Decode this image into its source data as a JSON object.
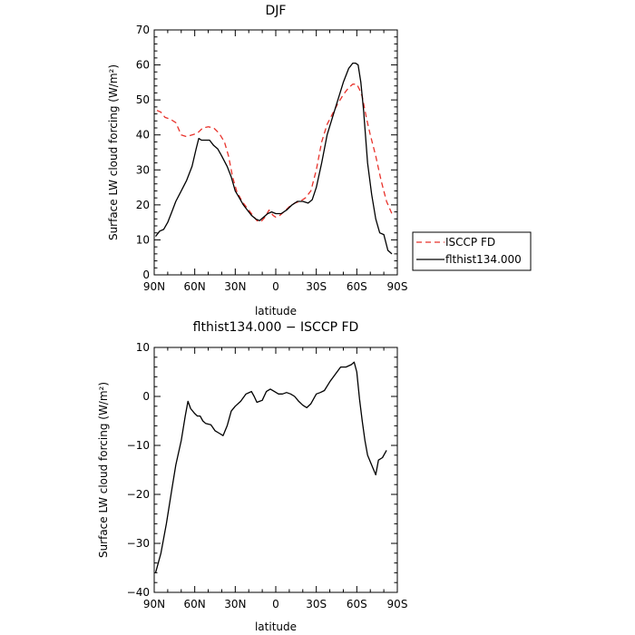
{
  "chart_data": [
    {
      "type": "line",
      "title": "DJF",
      "xlabel": "latitude",
      "ylabel": "Surface LW cloud forcing (W/m²)",
      "xlim": [
        -90,
        90
      ],
      "ylim": [
        0,
        70
      ],
      "x_ticks": [
        -90,
        -60,
        -30,
        0,
        30,
        60,
        90
      ],
      "x_tick_labels": [
        "90N",
        "60N",
        "30N",
        "0",
        "30S",
        "60S",
        "90S"
      ],
      "y_ticks": [
        0,
        10,
        20,
        30,
        40,
        50,
        60,
        70
      ],
      "y_tick_labels": [
        "0",
        "10",
        "20",
        "30",
        "40",
        "50",
        "60",
        "70"
      ],
      "grid": false,
      "legend_placement": "right-outside",
      "series": [
        {
          "name": "ISCCP FD",
          "color": "#e8322b",
          "style": "dashed",
          "points": [
            [
              -88,
              47
            ],
            [
              -85,
              46.5
            ],
            [
              -82,
              45
            ],
            [
              -78,
              44.5
            ],
            [
              -74,
              43.5
            ],
            [
              -70,
              40
            ],
            [
              -66,
              39.5
            ],
            [
              -62,
              40
            ],
            [
              -58,
              40.5
            ],
            [
              -54,
              42
            ],
            [
              -50,
              42.3
            ],
            [
              -46,
              42
            ],
            [
              -42,
              40.5
            ],
            [
              -38,
              38
            ],
            [
              -35,
              34
            ],
            [
              -32,
              28
            ],
            [
              -29,
              24
            ],
            [
              -25,
              21
            ],
            [
              -21,
              19
            ],
            [
              -18,
              17.5
            ],
            [
              -14,
              15.5
            ],
            [
              -11,
              15.2
            ],
            [
              -8,
              16.5
            ],
            [
              -5,
              18.5
            ],
            [
              -2,
              17
            ],
            [
              0,
              16.5
            ],
            [
              3,
              17
            ],
            [
              6,
              18
            ],
            [
              10,
              19.5
            ],
            [
              14,
              20.5
            ],
            [
              18,
              21
            ],
            [
              22,
              22
            ],
            [
              26,
              24
            ],
            [
              30,
              30
            ],
            [
              34,
              38
            ],
            [
              38,
              43
            ],
            [
              42,
              46
            ],
            [
              46,
              49
            ],
            [
              50,
              51.5
            ],
            [
              54,
              53.5
            ],
            [
              57,
              54.5
            ],
            [
              60,
              54.5
            ],
            [
              62,
              53
            ],
            [
              64,
              51
            ],
            [
              67,
              45
            ],
            [
              70,
              40
            ],
            [
              74,
              34
            ],
            [
              78,
              27
            ],
            [
              82,
              21
            ],
            [
              86,
              17.5
            ]
          ]
        },
        {
          "name": "flthist134.000",
          "color": "#000000",
          "style": "solid",
          "points": [
            [
              -89,
              11
            ],
            [
              -86,
              12.5
            ],
            [
              -83,
              13
            ],
            [
              -80,
              15
            ],
            [
              -77,
              18
            ],
            [
              -74,
              21
            ],
            [
              -70,
              24
            ],
            [
              -66,
              27
            ],
            [
              -62,
              31
            ],
            [
              -59,
              36
            ],
            [
              -57,
              39
            ],
            [
              -55,
              38.5
            ],
            [
              -52,
              38.5
            ],
            [
              -49,
              38.5
            ],
            [
              -46,
              37
            ],
            [
              -43,
              36
            ],
            [
              -40,
              34
            ],
            [
              -36,
              31
            ],
            [
              -33,
              28
            ],
            [
              -30,
              24
            ],
            [
              -27,
              22
            ],
            [
              -24,
              20
            ],
            [
              -21,
              18.5
            ],
            [
              -18,
              17
            ],
            [
              -15,
              16
            ],
            [
              -12,
              15.5
            ],
            [
              -9,
              16.5
            ],
            [
              -6,
              17.5
            ],
            [
              -3,
              18
            ],
            [
              0,
              17.5
            ],
            [
              4,
              17.5
            ],
            [
              8,
              18.5
            ],
            [
              12,
              20
            ],
            [
              16,
              21
            ],
            [
              20,
              21
            ],
            [
              24,
              20.5
            ],
            [
              27,
              21.5
            ],
            [
              30,
              25
            ],
            [
              34,
              32
            ],
            [
              38,
              40
            ],
            [
              42,
              45
            ],
            [
              46,
              50
            ],
            [
              50,
              55
            ],
            [
              54,
              59
            ],
            [
              57,
              60.5
            ],
            [
              59,
              60.5
            ],
            [
              61,
              60
            ],
            [
              63,
              55
            ],
            [
              65,
              47
            ],
            [
              68,
              32
            ],
            [
              71,
              23
            ],
            [
              74,
              16
            ],
            [
              77,
              12
            ],
            [
              80,
              11.5
            ],
            [
              83,
              7
            ],
            [
              86,
              6
            ]
          ]
        }
      ]
    },
    {
      "type": "line",
      "title": "flthist134.000 − ISCCP FD",
      "xlabel": "latitude",
      "ylabel": "Surface LW cloud forcing (W/m²)",
      "xlim": [
        -90,
        90
      ],
      "ylim": [
        -40,
        10
      ],
      "x_ticks": [
        -90,
        -60,
        -30,
        0,
        30,
        60,
        90
      ],
      "x_tick_labels": [
        "90N",
        "60N",
        "30N",
        "0",
        "30S",
        "60S",
        "90S"
      ],
      "y_ticks": [
        -40,
        -30,
        -20,
        -10,
        0,
        10
      ],
      "y_tick_labels": [
        "−40",
        "−30",
        "−20",
        "−10",
        "0",
        "10"
      ],
      "grid": false,
      "series": [
        {
          "color": "#000000",
          "style": "solid",
          "points": [
            [
              -89,
              -36
            ],
            [
              -85,
              -32
            ],
            [
              -81,
              -26
            ],
            [
              -77,
              -19
            ],
            [
              -74,
              -14
            ],
            [
              -70,
              -9
            ],
            [
              -67,
              -4
            ],
            [
              -65,
              -1
            ],
            [
              -63,
              -2.5
            ],
            [
              -60,
              -3.5
            ],
            [
              -58,
              -4
            ],
            [
              -56,
              -4
            ],
            [
              -54,
              -5
            ],
            [
              -52,
              -5.5
            ],
            [
              -48,
              -5.8
            ],
            [
              -45,
              -7
            ],
            [
              -42,
              -7.5
            ],
            [
              -39,
              -8
            ],
            [
              -36,
              -6
            ],
            [
              -33,
              -3
            ],
            [
              -30,
              -2
            ],
            [
              -26,
              -1
            ],
            [
              -22,
              0.5
            ],
            [
              -18,
              1
            ],
            [
              -16,
              0
            ],
            [
              -14,
              -1.2
            ],
            [
              -12,
              -1
            ],
            [
              -10,
              -0.8
            ],
            [
              -7,
              1
            ],
            [
              -4,
              1.5
            ],
            [
              -1,
              1
            ],
            [
              2,
              0.5
            ],
            [
              5,
              0.5
            ],
            [
              8,
              0.8
            ],
            [
              11,
              0.5
            ],
            [
              14,
              0
            ],
            [
              17,
              -1
            ],
            [
              20,
              -1.8
            ],
            [
              23,
              -2.3
            ],
            [
              26,
              -1.5
            ],
            [
              30,
              0.5
            ],
            [
              33,
              0.8
            ],
            [
              36,
              1.2
            ],
            [
              40,
              3
            ],
            [
              44,
              4.5
            ],
            [
              48,
              6
            ],
            [
              52,
              6
            ],
            [
              56,
              6.5
            ],
            [
              58,
              7
            ],
            [
              60,
              5
            ],
            [
              62,
              -0.5
            ],
            [
              64,
              -5
            ],
            [
              66,
              -9
            ],
            [
              68,
              -12
            ],
            [
              71,
              -14
            ],
            [
              74,
              -16
            ],
            [
              76,
              -13
            ],
            [
              79,
              -12.5
            ],
            [
              82,
              -11
            ]
          ]
        }
      ]
    }
  ]
}
